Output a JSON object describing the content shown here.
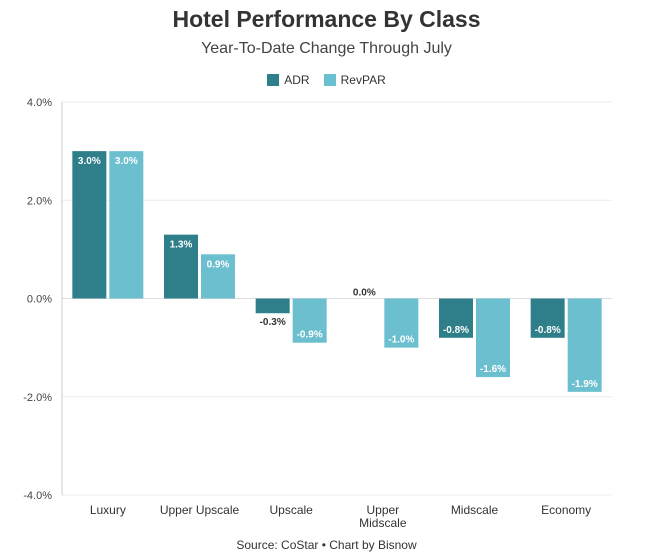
{
  "chart_data": {
    "type": "bar",
    "title": "Hotel Performance By Class",
    "subtitle": "Year-To-Date Change Through July",
    "categories": [
      "Luxury",
      "Upper Upscale",
      "Upscale",
      "Upper Midscale",
      "Midscale",
      "Economy"
    ],
    "series": [
      {
        "name": "ADR",
        "color": "#2e7f8a",
        "values": [
          3.0,
          1.3,
          -0.3,
          0.0,
          -0.8,
          -0.8
        ],
        "labels": [
          "3.0%",
          "1.3%",
          "-0.3%",
          "0.0%",
          "-0.8%",
          "-0.8%"
        ]
      },
      {
        "name": "RevPAR",
        "color": "#6bbfcf",
        "values": [
          3.0,
          0.9,
          -0.9,
          -1.0,
          -1.6,
          -1.9
        ],
        "labels": [
          "3.0%",
          "0.9%",
          "-0.9%",
          "-1.0%",
          "-1.6%",
          "-1.9%"
        ]
      }
    ],
    "yticks": [
      "4.0%",
      "2.0%",
      "0.0%",
      "-2.0%",
      "-4.0%"
    ],
    "ylim": [
      -4,
      4
    ],
    "grid": true,
    "legend_position": "top-center",
    "source": "Source: CoStar • Chart by Bisnow"
  }
}
